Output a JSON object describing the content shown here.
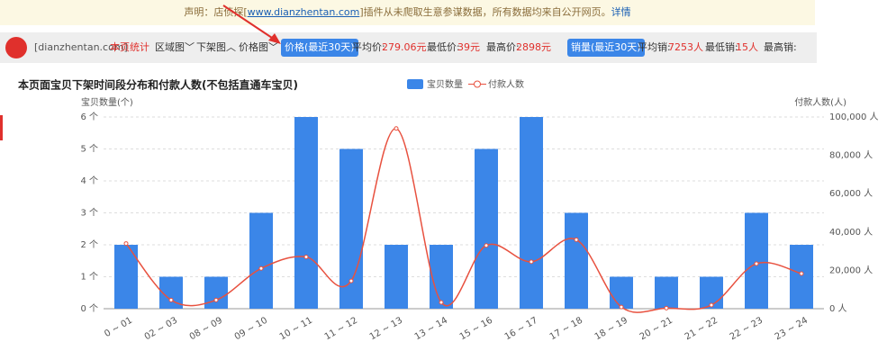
{
  "notice": {
    "prefix": "声明：店侦探[",
    "link": "www.dianzhentan.com",
    "suffix": "]插件从未爬取生意参谋数据，所有数据均来自公开网页。",
    "detail": "详情"
  },
  "toolbar": {
    "site": "[dianzhentan.com]",
    "stats": "本页统计",
    "area": "区域图﹀",
    "delist": "下架图︿",
    "price": "价格图﹀",
    "price_badge": "价格(最近30天)",
    "avg_price_label": "平均价:",
    "avg_price": "279.06元",
    "min_price_label": "最低价:",
    "min_price": "39元",
    "max_price_label": "最高价:",
    "max_price": "2898元",
    "sales_badge": "销量(最近30天)",
    "avg_sales_label": "平均销:",
    "avg_sales": "7253人",
    "min_sales_label": "最低销:",
    "min_sales": "15人",
    "max_sales_label": "最高销:"
  },
  "chart_data": {
    "type": "bar",
    "title": "本页面宝贝下架时间段分布和付款人数(不包括直通车宝贝)",
    "y_label": "宝贝数量(个)",
    "y2_label": "付款人数(人)",
    "categories": [
      "0 ~ 01",
      "02 ~ 03",
      "08 ~ 09",
      "09 ~ 10",
      "10 ~ 11",
      "11 ~ 12",
      "12 ~ 13",
      "13 ~ 14",
      "15 ~ 16",
      "16 ~ 17",
      "17 ~ 18",
      "18 ~ 19",
      "20 ~ 21",
      "21 ~ 22",
      "22 ~ 23",
      "23 ~ 24"
    ],
    "series": [
      {
        "name": "宝贝数量",
        "color": "#3b86e8",
        "type": "bar",
        "values": [
          2,
          1,
          1,
          3,
          6,
          5,
          2,
          2,
          5,
          6,
          3,
          1,
          1,
          1,
          3,
          2
        ]
      },
      {
        "name": "付款人数",
        "color": "#e8513f",
        "type": "line",
        "axis": "y2",
        "values": [
          34000,
          4500,
          4500,
          21000,
          27000,
          14500,
          94000,
          3300,
          33000,
          24500,
          36000,
          900,
          300,
          1900,
          23500,
          18300
        ]
      }
    ],
    "ylim": [
      0,
      6
    ],
    "yticks": [
      {
        "value": 0,
        "label": "0 个"
      },
      {
        "value": 1,
        "label": "1 个"
      },
      {
        "value": 2,
        "label": "2 个"
      },
      {
        "value": 3,
        "label": "3 个"
      },
      {
        "value": 4,
        "label": "4 个"
      },
      {
        "value": 5,
        "label": "5 个"
      },
      {
        "value": 6,
        "label": "6 个"
      }
    ],
    "y2lim": [
      0,
      100000
    ],
    "y2ticks": [
      {
        "value": 0,
        "label": "0 人"
      },
      {
        "value": 20000,
        "label": "20,000 人"
      },
      {
        "value": 40000,
        "label": "40,000 人"
      },
      {
        "value": 60000,
        "label": "60,000 人"
      },
      {
        "value": 80000,
        "label": "80,000 人"
      },
      {
        "value": 100000,
        "label": "100,000 人"
      }
    ],
    "grid": true
  }
}
